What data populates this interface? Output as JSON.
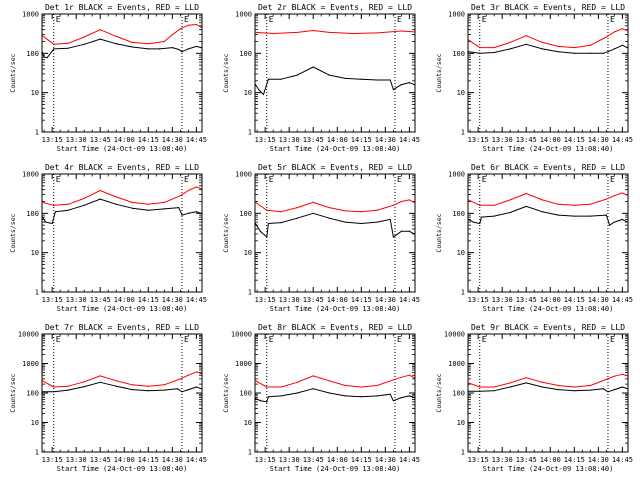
{
  "figure": {
    "xlabel": "Start Time (24-Oct-09 13:08:40)",
    "ylabel": "Counts/sec",
    "x_tick_labels": [
      "13:15",
      "13:30",
      "13:45",
      "14:00",
      "14:15",
      "14:30",
      "14:45"
    ],
    "colors": {
      "events": "#000000",
      "lld": "#ff0000",
      "axes": "#000000",
      "background": "#ffffff"
    },
    "dotted_markers": [
      "13:16",
      "14:36"
    ],
    "marker_label": "E"
  },
  "chart_data": [
    {
      "type": "line",
      "title": "Det 1r BLACK = Events, RED = LLD",
      "ylabel": "Counts/sec",
      "xlabel": "Start Time (24-Oct-09 13:08:40)",
      "y_scale": "log",
      "ylim": [
        1,
        1000
      ],
      "y_tick_labels": [
        "1",
        "10",
        "100",
        "1000"
      ],
      "x_tick_labels": [
        "13:15",
        "13:30",
        "13:45",
        "14:00",
        "14:15",
        "14:30",
        "14:45"
      ],
      "xlim": [
        "13:08:40",
        "14:48:30"
      ],
      "grid": false,
      "series": [
        {
          "name": "Events",
          "color": "#000000",
          "x": [
            "13:09",
            "13:10",
            "13:12",
            "13:16",
            "13:25",
            "13:35",
            "13:45",
            "13:55",
            "14:05",
            "14:15",
            "14:22",
            "14:30",
            "14:34",
            "14:36",
            "14:40",
            "14:45",
            "14:48"
          ],
          "y": [
            105,
            80,
            78,
            130,
            135,
            170,
            230,
            175,
            145,
            130,
            130,
            140,
            125,
            110,
            130,
            150,
            140
          ]
        },
        {
          "name": "LLD",
          "color": "#ff0000",
          "x": [
            "13:09",
            "13:16",
            "13:25",
            "13:35",
            "13:45",
            "13:55",
            "14:05",
            "14:15",
            "14:25",
            "14:30",
            "14:35",
            "14:40",
            "14:45",
            "14:48"
          ],
          "y": [
            280,
            170,
            180,
            260,
            400,
            270,
            190,
            175,
            200,
            300,
            420,
            520,
            540,
            460
          ]
        }
      ]
    },
    {
      "type": "line",
      "title": "Det 2r BLACK = Events, RED = LLD",
      "ylabel": "Counts/sec",
      "xlabel": "Start Time (24-Oct-09 13:08:40)",
      "y_scale": "log",
      "ylim": [
        1,
        1000
      ],
      "y_tick_labels": [
        "1",
        "10",
        "100",
        "1000"
      ],
      "x_tick_labels": [
        "13:15",
        "13:30",
        "13:45",
        "14:00",
        "14:15",
        "14:30",
        "14:45"
      ],
      "xlim": [
        "13:08:40",
        "14:48:30"
      ],
      "grid": false,
      "series": [
        {
          "name": "Events",
          "color": "#000000",
          "x": [
            "13:09",
            "13:11",
            "13:14",
            "13:17",
            "13:25",
            "13:35",
            "13:45",
            "13:55",
            "14:05",
            "14:15",
            "14:25",
            "14:33",
            "14:35",
            "14:40",
            "14:45",
            "14:48"
          ],
          "y": [
            16,
            12,
            9,
            22,
            22,
            28,
            45,
            28,
            23,
            22,
            21,
            21,
            12,
            16,
            18,
            16
          ]
        },
        {
          "name": "LLD",
          "color": "#ff0000",
          "x": [
            "13:09",
            "13:20",
            "13:35",
            "13:45",
            "13:55",
            "14:10",
            "14:25",
            "14:40",
            "14:48"
          ],
          "y": [
            340,
            320,
            340,
            380,
            340,
            320,
            330,
            370,
            350
          ]
        }
      ]
    },
    {
      "type": "line",
      "title": "Det 3r BLACK = Events, RED = LLD",
      "ylabel": "Counts/sec",
      "xlabel": "Start Time (24-Oct-09 13:08:40)",
      "y_scale": "log",
      "ylim": [
        1,
        1000
      ],
      "y_tick_labels": [
        "1",
        "10",
        "100",
        "1000"
      ],
      "x_tick_labels": [
        "13:15",
        "13:30",
        "13:45",
        "14:00",
        "14:15",
        "14:30",
        "14:45"
      ],
      "xlim": [
        "13:08:40",
        "14:48:30"
      ],
      "grid": false,
      "series": [
        {
          "name": "Events",
          "color": "#000000",
          "x": [
            "13:09",
            "13:16",
            "13:25",
            "13:35",
            "13:45",
            "13:55",
            "14:05",
            "14:15",
            "14:25",
            "14:33",
            "14:36",
            "14:40",
            "14:45",
            "14:48"
          ],
          "y": [
            110,
            100,
            105,
            130,
            170,
            130,
            110,
            100,
            100,
            100,
            110,
            130,
            160,
            140
          ]
        },
        {
          "name": "LLD",
          "color": "#ff0000",
          "x": [
            "13:09",
            "13:16",
            "13:25",
            "13:35",
            "13:45",
            "13:55",
            "14:05",
            "14:15",
            "14:25",
            "14:35",
            "14:40",
            "14:45",
            "14:48"
          ],
          "y": [
            220,
            140,
            140,
            190,
            280,
            190,
            150,
            140,
            160,
            260,
            350,
            420,
            380
          ]
        }
      ]
    },
    {
      "type": "line",
      "title": "Det 4r BLACK = Events, RED = LLD",
      "ylabel": "Counts/sec",
      "xlabel": "Start Time (24-Oct-09 13:08:40)",
      "y_scale": "log",
      "ylim": [
        1,
        1000
      ],
      "y_tick_labels": [
        "1",
        "10",
        "100",
        "1000"
      ],
      "x_tick_labels": [
        "13:15",
        "13:30",
        "13:45",
        "14:00",
        "14:15",
        "14:30",
        "14:45"
      ],
      "xlim": [
        "13:08:40",
        "14:48:30"
      ],
      "grid": false,
      "series": [
        {
          "name": "Events",
          "color": "#000000",
          "x": [
            "13:09",
            "13:11",
            "13:15",
            "13:17",
            "13:25",
            "13:35",
            "13:45",
            "13:55",
            "14:05",
            "14:15",
            "14:25",
            "14:34",
            "14:36",
            "14:40",
            "14:45",
            "14:48"
          ],
          "y": [
            80,
            60,
            55,
            110,
            120,
            160,
            230,
            170,
            135,
            120,
            130,
            140,
            90,
            100,
            110,
            100
          ]
        },
        {
          "name": "LLD",
          "color": "#ff0000",
          "x": [
            "13:09",
            "13:16",
            "13:25",
            "13:35",
            "13:45",
            "13:55",
            "14:05",
            "14:15",
            "14:25",
            "14:35",
            "14:40",
            "14:45",
            "14:48"
          ],
          "y": [
            190,
            160,
            170,
            240,
            380,
            260,
            190,
            170,
            190,
            280,
            380,
            470,
            420
          ]
        }
      ]
    },
    {
      "type": "line",
      "title": "Det 5r BLACK = Events, RED = LLD",
      "ylabel": "Counts/sec",
      "xlabel": "Start Time (24-Oct-09 13:08:40)",
      "y_scale": "log",
      "ylim": [
        1,
        1000
      ],
      "y_tick_labels": [
        "1",
        "10",
        "100",
        "1000"
      ],
      "x_tick_labels": [
        "13:15",
        "13:30",
        "13:45",
        "14:00",
        "14:15",
        "14:30",
        "14:45"
      ],
      "xlim": [
        "13:08:40",
        "14:48:30"
      ],
      "grid": false,
      "series": [
        {
          "name": "Events",
          "color": "#000000",
          "x": [
            "13:09",
            "13:12",
            "13:16",
            "13:17",
            "13:25",
            "13:35",
            "13:45",
            "13:55",
            "14:05",
            "14:15",
            "14:25",
            "14:33",
            "14:35",
            "14:40",
            "14:45",
            "14:48"
          ],
          "y": [
            55,
            35,
            25,
            55,
            58,
            75,
            100,
            75,
            60,
            55,
            60,
            70,
            25,
            35,
            35,
            30
          ]
        },
        {
          "name": "LLD",
          "color": "#ff0000",
          "x": [
            "13:09",
            "13:16",
            "13:25",
            "13:35",
            "13:45",
            "13:55",
            "14:05",
            "14:15",
            "14:25",
            "14:35",
            "14:40",
            "14:45",
            "14:48"
          ],
          "y": [
            190,
            120,
            110,
            140,
            190,
            140,
            115,
            110,
            120,
            160,
            200,
            220,
            190
          ]
        }
      ]
    },
    {
      "type": "line",
      "title": "Det 6r BLACK = Events, RED = LLD",
      "ylabel": "Counts/sec",
      "xlabel": "Start Time (24-Oct-09 13:08:40)",
      "y_scale": "log",
      "ylim": [
        1,
        1000
      ],
      "y_tick_labels": [
        "1",
        "10",
        "100",
        "1000"
      ],
      "x_tick_labels": [
        "13:15",
        "13:30",
        "13:45",
        "14:00",
        "14:15",
        "14:30",
        "14:45"
      ],
      "xlim": [
        "13:08:40",
        "14:48:30"
      ],
      "grid": false,
      "series": [
        {
          "name": "Events",
          "color": "#000000",
          "x": [
            "13:09",
            "13:12",
            "13:16",
            "13:17",
            "13:25",
            "13:35",
            "13:45",
            "13:55",
            "14:05",
            "14:15",
            "14:25",
            "14:35",
            "14:37",
            "14:40",
            "14:45",
            "14:48"
          ],
          "y": [
            70,
            60,
            55,
            80,
            85,
            105,
            150,
            110,
            90,
            85,
            85,
            90,
            50,
            60,
            70,
            60
          ]
        },
        {
          "name": "LLD",
          "color": "#ff0000",
          "x": [
            "13:09",
            "13:16",
            "13:25",
            "13:35",
            "13:45",
            "13:55",
            "14:05",
            "14:15",
            "14:25",
            "14:35",
            "14:40",
            "14:45",
            "14:48"
          ],
          "y": [
            220,
            160,
            160,
            220,
            320,
            220,
            170,
            160,
            170,
            230,
            280,
            330,
            290
          ]
        }
      ]
    },
    {
      "type": "line",
      "title": "Det 7r BLACK = Events, RED = LLD",
      "ylabel": "Counts/sec",
      "xlabel": "Start Time (24-Oct-09 13:08:40)",
      "y_scale": "log",
      "ylim": [
        1,
        10000
      ],
      "y_tick_labels": [
        "1",
        "10",
        "100",
        "1000",
        "10000"
      ],
      "x_tick_labels": [
        "13:15",
        "13:30",
        "13:45",
        "14:00",
        "14:15",
        "14:30",
        "14:45"
      ],
      "xlim": [
        "13:08:40",
        "14:48:30"
      ],
      "grid": false,
      "series": [
        {
          "name": "Events",
          "color": "#000000",
          "x": [
            "13:09",
            "13:16",
            "13:25",
            "13:35",
            "13:45",
            "13:55",
            "14:05",
            "14:15",
            "14:25",
            "14:33",
            "14:36",
            "14:40",
            "14:45",
            "14:48"
          ],
          "y": [
            110,
            110,
            125,
            165,
            230,
            170,
            130,
            120,
            125,
            140,
            110,
            130,
            160,
            140
          ]
        },
        {
          "name": "LLD",
          "color": "#ff0000",
          "x": [
            "13:09",
            "13:16",
            "13:25",
            "13:35",
            "13:45",
            "13:55",
            "14:05",
            "14:15",
            "14:25",
            "14:35",
            "14:40",
            "14:45",
            "14:48"
          ],
          "y": [
            260,
            160,
            170,
            240,
            380,
            260,
            190,
            170,
            190,
            300,
            400,
            520,
            450
          ]
        }
      ]
    },
    {
      "type": "line",
      "title": "Det 8r BLACK = Events, RED = LLD",
      "ylabel": "Counts/sec",
      "xlabel": "Start Time (24-Oct-09 13:08:40)",
      "y_scale": "log",
      "ylim": [
        1,
        10000
      ],
      "y_tick_labels": [
        "1",
        "10",
        "100",
        "1000",
        "10000"
      ],
      "x_tick_labels": [
        "13:15",
        "13:30",
        "13:45",
        "14:00",
        "14:15",
        "14:30",
        "14:45"
      ],
      "xlim": [
        "13:08:40",
        "14:48:30"
      ],
      "grid": false,
      "series": [
        {
          "name": "Events",
          "color": "#000000",
          "x": [
            "13:09",
            "13:12",
            "13:16",
            "13:17",
            "13:25",
            "13:35",
            "13:45",
            "13:55",
            "14:05",
            "14:15",
            "14:25",
            "14:33",
            "14:35",
            "14:40",
            "14:45",
            "14:48"
          ],
          "y": [
            65,
            55,
            50,
            75,
            80,
            100,
            140,
            100,
            80,
            75,
            80,
            90,
            55,
            70,
            80,
            70
          ]
        },
        {
          "name": "LLD",
          "color": "#ff0000",
          "x": [
            "13:09",
            "13:16",
            "13:25",
            "13:35",
            "13:45",
            "13:55",
            "14:05",
            "14:15",
            "14:25",
            "14:35",
            "14:40",
            "14:45",
            "14:48"
          ],
          "y": [
            260,
            160,
            160,
            230,
            380,
            260,
            180,
            160,
            180,
            280,
            340,
            400,
            330
          ]
        }
      ]
    },
    {
      "type": "line",
      "title": "Det 9r BLACK = Events, RED = LLD",
      "ylabel": "Counts/sec",
      "xlabel": "Start Time (24-Oct-09 13:08:40)",
      "y_scale": "log",
      "ylim": [
        1,
        10000
      ],
      "y_tick_labels": [
        "1",
        "10",
        "100",
        "1000",
        "10000"
      ],
      "x_tick_labels": [
        "13:15",
        "13:30",
        "13:45",
        "14:00",
        "14:15",
        "14:30",
        "14:45"
      ],
      "xlim": [
        "13:08:40",
        "14:48:30"
      ],
      "grid": false,
      "series": [
        {
          "name": "Events",
          "color": "#000000",
          "x": [
            "13:09",
            "13:16",
            "13:25",
            "13:35",
            "13:45",
            "13:55",
            "14:05",
            "14:15",
            "14:25",
            "14:33",
            "14:36",
            "14:40",
            "14:45",
            "14:48"
          ],
          "y": [
            115,
            115,
            120,
            160,
            220,
            160,
            130,
            120,
            125,
            140,
            110,
            130,
            160,
            140
          ]
        },
        {
          "name": "LLD",
          "color": "#ff0000",
          "x": [
            "13:09",
            "13:16",
            "13:25",
            "13:35",
            "13:45",
            "13:55",
            "14:05",
            "14:15",
            "14:25",
            "14:35",
            "14:40",
            "14:45",
            "14:48"
          ],
          "y": [
            220,
            160,
            160,
            220,
            330,
            230,
            180,
            160,
            180,
            290,
            370,
            430,
            380
          ]
        }
      ]
    }
  ]
}
